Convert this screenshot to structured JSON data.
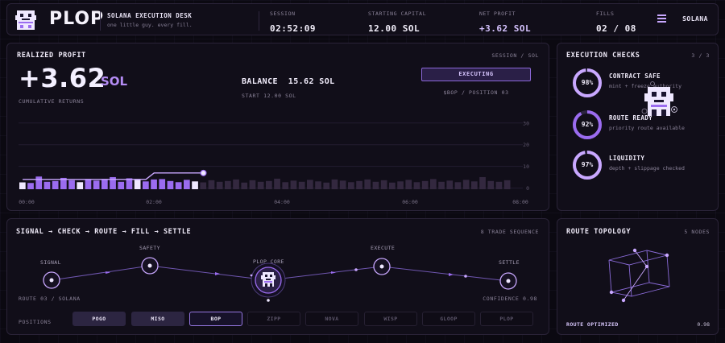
{
  "header": {
    "brand": "PLOP",
    "desk_title": "SOLANA EXECUTION DESK",
    "desk_subtitle": "one little guy. every fill.",
    "stats": [
      {
        "label": "SESSION",
        "value": "02:52:09"
      },
      {
        "label": "STARTING CAPITAL",
        "value": "12.00 SOL"
      },
      {
        "label": "NET PROFIT",
        "value": "+3.62 SOL"
      },
      {
        "label": "FILLS",
        "value": "02 / 08"
      }
    ],
    "chain": "SOLANA",
    "menu_icon": "menu-icon"
  },
  "profit": {
    "title": "REALIZED PROFIT",
    "tag": "SESSION / SOL",
    "value": "+3.62",
    "unit": "SOL",
    "caption": "CUMULATIVE RETURNS",
    "balance": "BALANCE  15.62 SOL",
    "start": "START 12.00 SOL",
    "status_button": "EXECUTING",
    "position": "$BOP / POSITION 03"
  },
  "chart_data": {
    "type": "bar",
    "x_ticks": [
      "00:00",
      "02:00",
      "04:00",
      "06:00",
      "08:00"
    ],
    "y_ticks": [
      "30",
      "20",
      "10",
      "0"
    ],
    "ylim": [
      -2,
      34
    ],
    "bar_count": 60,
    "filled_bars": 22,
    "bar_values": [
      1.5,
      1.2,
      4.5,
      1.8,
      2.2,
      3.8,
      2.6,
      1.6,
      3.0,
      2.4,
      3.2,
      4.2,
      1.8,
      3.6,
      2.8,
      2.0,
      3.0,
      3.2,
      2.2,
      1.6,
      2.8,
      2.0,
      1.5,
      2.6,
      1.8,
      2.2,
      3.0,
      1.4,
      2.6,
      1.8,
      2.2,
      3.4,
      1.6,
      2.4,
      1.8,
      2.8,
      2.0,
      1.4,
      3.0,
      2.4,
      1.6,
      2.2,
      3.0,
      1.8,
      2.6,
      1.4,
      2.0,
      2.8,
      1.6,
      2.2,
      3.2,
      1.8,
      2.4,
      1.6,
      2.8,
      2.0,
      4.2,
      2.2,
      1.8,
      2.6
    ],
    "line_values": [
      2.0,
      2.0,
      2.0,
      2.0,
      2.0,
      2.0,
      2.0,
      2.0,
      2.0,
      2.0,
      2.0,
      2.0,
      2.0,
      2.0,
      2.0,
      2.0,
      4.5,
      4.5,
      4.5,
      4.5,
      4.5,
      4.5,
      4.5
    ],
    "grid": true
  },
  "checks": {
    "title": "EXECUTION CHECKS",
    "count": "3 / 3",
    "items": [
      {
        "pct": 98,
        "pct_label": "98%",
        "name": "CONTRACT SAFE",
        "desc": "mint + freeze authority"
      },
      {
        "pct": 92,
        "pct_label": "92%",
        "name": "ROUTE READY",
        "desc": "priority route available"
      },
      {
        "pct": 97,
        "pct_label": "97%",
        "name": "LIQUIDITY",
        "desc": "depth + slippage checked"
      }
    ]
  },
  "pipeline": {
    "title": "SIGNAL → CHECK → ROUTE → FILL → SETTLE",
    "count": "8 TRADE SEQUENCE",
    "nodes": [
      "SIGNAL",
      "SAFETY",
      "PLOP CORE",
      "EXECUTE",
      "SETTLE"
    ],
    "route_info": "ROUTE 03 / SOLANA",
    "confidence": "CONFIDENCE 0.98",
    "positions_label": "POSITIONS",
    "positions": [
      {
        "label": "POGO",
        "state": "done"
      },
      {
        "label": "MISO",
        "state": "done"
      },
      {
        "label": "BOP",
        "state": "active"
      },
      {
        "label": "ZIPP",
        "state": "pending"
      },
      {
        "label": "NOVA",
        "state": "pending"
      },
      {
        "label": "WISP",
        "state": "pending"
      },
      {
        "label": "GLOOP",
        "state": "pending"
      },
      {
        "label": "PLOP",
        "state": "pending"
      }
    ]
  },
  "topology": {
    "title": "ROUTE TOPOLOGY",
    "nodes": "5 NODES",
    "status": "ROUTE OPTIMIZED",
    "value": "0.98"
  },
  "colors": {
    "accent": "#9b6cf0",
    "accent_light": "#c9a8ff",
    "bar_dim": "#3a2e4d",
    "panel": "#110e19"
  }
}
